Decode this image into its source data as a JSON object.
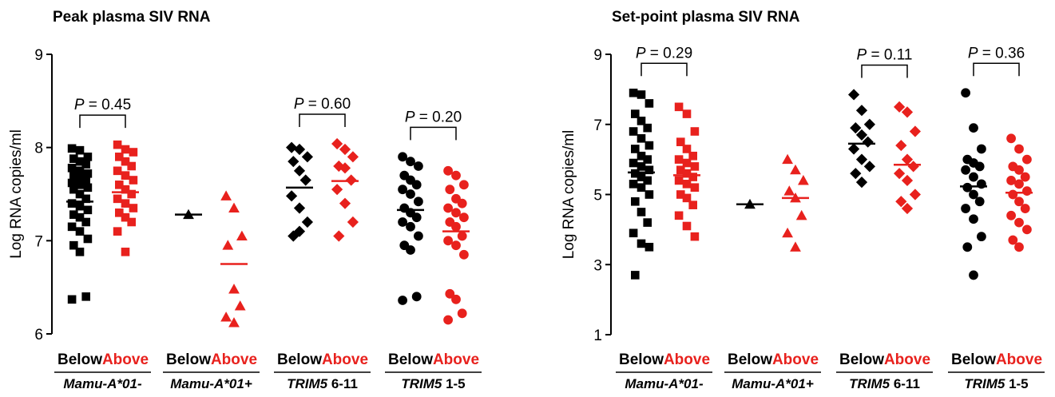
{
  "colors": {
    "below": "#000000",
    "above": "#e8211d",
    "axis": "#000000"
  },
  "chart_data": [
    {
      "type": "scatter",
      "title": "Peak plasma SIV RNA",
      "ylabel": "Log RNA copies/ml",
      "ylim": [
        6,
        9
      ],
      "yticks": [
        6,
        7,
        8,
        9
      ],
      "groups": [
        {
          "label": "Mamu-A*01-",
          "label_italic": "Mamu-A*01-",
          "label_plain": "",
          "marker": "square",
          "pvalue": "0.45",
          "below": {
            "label": "Below",
            "mean": 7.42,
            "values": [
              7.99,
              7.97,
              7.9,
              7.88,
              7.85,
              7.82,
              7.78,
              7.75,
              7.72,
              7.7,
              7.68,
              7.65,
              7.62,
              7.6,
              7.57,
              7.55,
              7.5,
              7.45,
              7.4,
              7.37,
              7.33,
              7.28,
              7.25,
              7.2,
              7.15,
              7.1,
              7.02,
              6.95,
              6.88,
              6.4,
              6.37
            ]
          },
          "above": {
            "label": "Above",
            "mean": 7.52,
            "values": [
              8.03,
              7.98,
              7.95,
              7.9,
              7.85,
              7.8,
              7.75,
              7.7,
              7.65,
              7.6,
              7.55,
              7.5,
              7.45,
              7.4,
              7.35,
              7.3,
              7.25,
              7.2,
              7.1,
              6.88
            ]
          }
        },
        {
          "label": "Mamu-A*01+",
          "label_italic": "Mamu-A*01+",
          "label_plain": "",
          "marker": "triangle",
          "pvalue": "",
          "below": {
            "label": "Below",
            "mean": 7.28,
            "values": [
              7.28
            ]
          },
          "above": {
            "label": "Above",
            "mean": 6.75,
            "values": [
              7.48,
              7.35,
              7.05,
              6.95,
              6.48,
              6.3,
              6.18,
              6.12
            ]
          }
        },
        {
          "label": "TRIM5 6-11",
          "label_italic": "TRIM5",
          "label_plain": " 6-11",
          "marker": "diamond",
          "pvalue": "0.60",
          "below": {
            "label": "Below",
            "mean": 7.57,
            "values": [
              8.0,
              7.98,
              7.9,
              7.85,
              7.75,
              7.65,
              7.48,
              7.35,
              7.2,
              7.05,
              7.1
            ]
          },
          "above": {
            "label": "Above",
            "mean": 7.64,
            "values": [
              8.04,
              7.98,
              7.9,
              7.8,
              7.78,
              7.65,
              7.55,
              7.4,
              7.2,
              7.05
            ]
          }
        },
        {
          "label": "TRIM5 1-5",
          "label_italic": "TRIM5",
          "label_plain": " 1-5",
          "marker": "circle",
          "pvalue": "0.20",
          "below": {
            "label": "Below",
            "mean": 7.33,
            "values": [
              7.9,
              7.85,
              7.8,
              7.7,
              7.65,
              7.6,
              7.55,
              7.5,
              7.42,
              7.35,
              7.3,
              7.25,
              7.2,
              7.15,
              7.05,
              6.95,
              6.9,
              6.4,
              6.36
            ]
          },
          "above": {
            "label": "Above",
            "mean": 7.1,
            "values": [
              7.75,
              7.7,
              7.6,
              7.55,
              7.45,
              7.4,
              7.35,
              7.3,
              7.25,
              7.2,
              7.15,
              7.05,
              7.0,
              6.95,
              6.85,
              6.43,
              6.37,
              6.22,
              6.15
            ]
          }
        }
      ]
    },
    {
      "type": "scatter",
      "title": "Set-point plasma SIV RNA",
      "ylabel": "Log RNA copies/ml",
      "ylim": [
        1,
        9
      ],
      "yticks": [
        1,
        3,
        5,
        7,
        9
      ],
      "groups": [
        {
          "label": "Mamu-A*01-",
          "label_italic": "Mamu-A*01-",
          "label_plain": "",
          "marker": "square",
          "pvalue": "0.29",
          "below": {
            "label": "Below",
            "mean": 5.63,
            "values": [
              7.9,
              7.85,
              7.6,
              7.3,
              7.1,
              6.9,
              6.8,
              6.6,
              6.4,
              6.3,
              6.1,
              6.0,
              5.9,
              5.8,
              5.7,
              5.6,
              5.5,
              5.4,
              5.3,
              5.2,
              5.0,
              4.8,
              4.5,
              4.2,
              3.9,
              3.6,
              3.5,
              2.7
            ]
          },
          "above": {
            "label": "Above",
            "mean": 5.55,
            "values": [
              7.5,
              7.3,
              6.8,
              6.5,
              6.3,
              6.1,
              6.0,
              5.9,
              5.8,
              5.7,
              5.6,
              5.5,
              5.4,
              5.3,
              5.2,
              5.0,
              4.9,
              4.7,
              4.4,
              4.1,
              3.8
            ]
          }
        },
        {
          "label": "Mamu-A*01+",
          "label_italic": "Mamu-A*01+",
          "label_plain": "",
          "marker": "triangle",
          "pvalue": "",
          "below": {
            "label": "Below",
            "mean": 4.72,
            "values": [
              4.72
            ]
          },
          "above": {
            "label": "Above",
            "mean": 4.9,
            "values": [
              6.0,
              5.7,
              5.4,
              5.1,
              4.9,
              4.4,
              3.9,
              3.5
            ]
          }
        },
        {
          "label": "TRIM5 6-11",
          "label_italic": "TRIM5",
          "label_plain": " 6-11",
          "marker": "diamond",
          "pvalue": "0.11",
          "below": {
            "label": "Below",
            "mean": 6.45,
            "values": [
              7.85,
              7.4,
              7.0,
              6.9,
              6.7,
              6.5,
              6.3,
              6.0,
              5.8,
              5.6,
              5.35
            ]
          },
          "above": {
            "label": "Above",
            "mean": 5.85,
            "values": [
              7.5,
              7.35,
              6.8,
              6.4,
              6.0,
              5.8,
              5.6,
              5.4,
              5.0,
              4.8,
              4.6
            ]
          }
        },
        {
          "label": "TRIM5 1-5",
          "label_italic": "TRIM5",
          "label_plain": " 1-5",
          "marker": "circle",
          "pvalue": "0.36",
          "below": {
            "label": "Below",
            "mean": 5.23,
            "values": [
              7.9,
              6.9,
              6.3,
              6.0,
              5.9,
              5.8,
              5.7,
              5.5,
              5.3,
              5.2,
              5.0,
              4.8,
              4.6,
              4.3,
              3.8,
              3.5,
              2.7
            ]
          },
          "above": {
            "label": "Above",
            "mean": 5.05,
            "values": [
              6.6,
              6.3,
              6.0,
              5.8,
              5.7,
              5.5,
              5.4,
              5.3,
              5.1,
              5.0,
              4.8,
              4.6,
              4.4,
              4.2,
              4.0,
              3.7,
              3.5
            ]
          }
        }
      ]
    }
  ]
}
